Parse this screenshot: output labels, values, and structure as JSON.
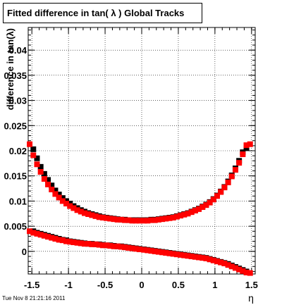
{
  "title": "Fitted difference in tan( λ )  Global Tracks",
  "timestamp": "Tue Nov  8 21:21:16 2011",
  "chart_data": {
    "type": "scatter",
    "title": "Fitted difference in tan( λ )  Global Tracks",
    "xlabel": "η",
    "ylabel": "difference in tan(λ)",
    "xlim": [
      -1.55,
      1.55
    ],
    "ylim": [
      -0.0045,
      0.0445
    ],
    "grid": true,
    "x_ticks": [
      -1.5,
      -1,
      -0.5,
      0,
      0.5,
      1,
      1.5
    ],
    "x_tick_labels": [
      "-1.5",
      "-1",
      "-0.5",
      "0",
      "0.5",
      "1",
      "1.5"
    ],
    "y_ticks": [
      0,
      0.005,
      0.01,
      0.015,
      0.02,
      0.025,
      0.03,
      0.035,
      0.04
    ],
    "y_tick_labels": [
      "0",
      "0.005",
      "0.01",
      "0.015",
      "0.02",
      "0.025",
      "0.03",
      "0.035",
      "0.04"
    ],
    "series": [
      {
        "color": "#000000",
        "points": [
          [
            -1.48,
            0.0203
          ],
          [
            -1.43,
            0.0185
          ],
          [
            -1.38,
            0.0168
          ],
          [
            -1.33,
            0.0154
          ],
          [
            -1.28,
            0.0142
          ],
          [
            -1.23,
            0.0131
          ],
          [
            -1.18,
            0.0121
          ],
          [
            -1.13,
            0.0113
          ],
          [
            -1.08,
            0.0106
          ],
          [
            -1.03,
            0.01
          ],
          [
            -0.98,
            0.0095
          ],
          [
            -0.93,
            0.009
          ],
          [
            -0.88,
            0.0086
          ],
          [
            -0.83,
            0.0082
          ],
          [
            -0.78,
            0.0079
          ],
          [
            -0.73,
            0.0076
          ],
          [
            -0.68,
            0.0074
          ],
          [
            -0.63,
            0.0072
          ],
          [
            -0.58,
            0.007
          ],
          [
            -0.53,
            0.0068
          ],
          [
            -0.48,
            0.0067
          ],
          [
            -0.43,
            0.0066
          ],
          [
            -0.38,
            0.0065
          ],
          [
            -0.33,
            0.0064
          ],
          [
            -0.28,
            0.0063
          ],
          [
            -0.23,
            0.0063
          ],
          [
            -0.18,
            0.0062
          ],
          [
            -0.13,
            0.0062
          ],
          [
            -0.08,
            0.0062
          ],
          [
            -0.03,
            0.0062
          ],
          [
            0.03,
            0.0062
          ],
          [
            0.08,
            0.0062
          ],
          [
            0.13,
            0.0063
          ],
          [
            0.18,
            0.0063
          ],
          [
            0.23,
            0.0064
          ],
          [
            0.28,
            0.0065
          ],
          [
            0.33,
            0.0066
          ],
          [
            0.38,
            0.0067
          ],
          [
            0.43,
            0.0068
          ],
          [
            0.48,
            0.007
          ],
          [
            0.53,
            0.0072
          ],
          [
            0.58,
            0.0074
          ],
          [
            0.63,
            0.0076
          ],
          [
            0.68,
            0.0079
          ],
          [
            0.73,
            0.0082
          ],
          [
            0.78,
            0.0085
          ],
          [
            0.83,
            0.0089
          ],
          [
            0.88,
            0.0093
          ],
          [
            0.93,
            0.0098
          ],
          [
            0.98,
            0.0104
          ],
          [
            1.03,
            0.0111
          ],
          [
            1.08,
            0.0119
          ],
          [
            1.13,
            0.0128
          ],
          [
            1.18,
            0.0139
          ],
          [
            1.23,
            0.0151
          ],
          [
            1.28,
            0.0165
          ],
          [
            1.33,
            0.018
          ],
          [
            1.38,
            0.0197
          ],
          [
            1.43,
            0.0205
          ],
          [
            -1.48,
            0.004
          ],
          [
            -1.43,
            0.0037
          ],
          [
            -1.38,
            0.0035
          ],
          [
            -1.33,
            0.0033
          ],
          [
            -1.28,
            0.0031
          ],
          [
            -1.23,
            0.0029
          ],
          [
            -1.18,
            0.0027
          ],
          [
            -1.13,
            0.0025
          ],
          [
            -1.08,
            0.0023
          ],
          [
            -1.03,
            0.0022
          ],
          [
            -0.98,
            0.002
          ],
          [
            -0.93,
            0.0019
          ],
          [
            -0.88,
            0.0018
          ],
          [
            -0.83,
            0.0017
          ],
          [
            -0.78,
            0.0016
          ],
          [
            -0.73,
            0.0015
          ],
          [
            -0.68,
            0.0015
          ],
          [
            -0.63,
            0.0014
          ],
          [
            -0.58,
            0.0014
          ],
          [
            -0.53,
            0.0013
          ],
          [
            -0.48,
            0.0012
          ],
          [
            -0.43,
            0.0012
          ],
          [
            -0.38,
            0.0011
          ],
          [
            -0.33,
            0.001
          ],
          [
            -0.28,
            0.001
          ],
          [
            -0.23,
            0.0009
          ],
          [
            -0.18,
            0.0008
          ],
          [
            -0.13,
            0.0007
          ],
          [
            -0.08,
            0.0006
          ],
          [
            -0.03,
            0.0005
          ],
          [
            0.03,
            0.0004
          ],
          [
            0.08,
            0.0003
          ],
          [
            0.13,
            0.0002
          ],
          [
            0.18,
            0.0001
          ],
          [
            0.23,
            0.0
          ],
          [
            0.28,
            -0.0001
          ],
          [
            0.33,
            -0.0002
          ],
          [
            0.38,
            -0.0003
          ],
          [
            0.43,
            -0.0004
          ],
          [
            0.48,
            -0.0005
          ],
          [
            0.53,
            -0.0006
          ],
          [
            0.58,
            -0.0007
          ],
          [
            0.63,
            -0.0008
          ],
          [
            0.68,
            -0.0009
          ],
          [
            0.73,
            -0.001
          ],
          [
            0.78,
            -0.0011
          ],
          [
            0.83,
            -0.0012
          ],
          [
            0.88,
            -0.0013
          ],
          [
            0.93,
            -0.0015
          ],
          [
            0.98,
            -0.0017
          ],
          [
            1.03,
            -0.0019
          ],
          [
            1.08,
            -0.0021
          ],
          [
            1.13,
            -0.0023
          ],
          [
            1.18,
            -0.0025
          ],
          [
            1.23,
            -0.0028
          ],
          [
            1.28,
            -0.0031
          ],
          [
            1.33,
            -0.0034
          ],
          [
            1.38,
            -0.0037
          ],
          [
            1.43,
            -0.004
          ]
        ]
      },
      {
        "color": "#ff0000",
        "points": [
          [
            -1.53,
            0.0213
          ],
          [
            -1.48,
            0.0191
          ],
          [
            -1.43,
            0.0173
          ],
          [
            -1.38,
            0.0158
          ],
          [
            -1.33,
            0.0144
          ],
          [
            -1.28,
            0.0133
          ],
          [
            -1.23,
            0.0123
          ],
          [
            -1.18,
            0.0114
          ],
          [
            -1.13,
            0.0107
          ],
          [
            -1.08,
            0.01
          ],
          [
            -1.03,
            0.0095
          ],
          [
            -0.98,
            0.009
          ],
          [
            -0.93,
            0.0086
          ],
          [
            -0.88,
            0.0082
          ],
          [
            -0.83,
            0.0079
          ],
          [
            -0.78,
            0.0076
          ],
          [
            -0.73,
            0.0074
          ],
          [
            -0.68,
            0.0072
          ],
          [
            -0.63,
            0.007
          ],
          [
            -0.58,
            0.0068
          ],
          [
            -0.53,
            0.0067
          ],
          [
            -0.48,
            0.0066
          ],
          [
            -0.43,
            0.0065
          ],
          [
            -0.38,
            0.0064
          ],
          [
            -0.33,
            0.0063
          ],
          [
            -0.28,
            0.0063
          ],
          [
            -0.23,
            0.0062
          ],
          [
            -0.18,
            0.0062
          ],
          [
            -0.13,
            0.0061
          ],
          [
            -0.08,
            0.0061
          ],
          [
            -0.03,
            0.0061
          ],
          [
            0.03,
            0.0061
          ],
          [
            0.08,
            0.0061
          ],
          [
            0.13,
            0.0062
          ],
          [
            0.18,
            0.0062
          ],
          [
            0.23,
            0.0063
          ],
          [
            0.28,
            0.0064
          ],
          [
            0.33,
            0.0065
          ],
          [
            0.38,
            0.0066
          ],
          [
            0.43,
            0.0067
          ],
          [
            0.48,
            0.0069
          ],
          [
            0.53,
            0.0071
          ],
          [
            0.58,
            0.0073
          ],
          [
            0.63,
            0.0075
          ],
          [
            0.68,
            0.0078
          ],
          [
            0.73,
            0.0081
          ],
          [
            0.78,
            0.0084
          ],
          [
            0.83,
            0.0088
          ],
          [
            0.88,
            0.0092
          ],
          [
            0.93,
            0.0097
          ],
          [
            0.98,
            0.0103
          ],
          [
            1.03,
            0.011
          ],
          [
            1.08,
            0.0118
          ],
          [
            1.13,
            0.0127
          ],
          [
            1.18,
            0.0137
          ],
          [
            1.23,
            0.0149
          ],
          [
            1.28,
            0.0162
          ],
          [
            1.33,
            0.0176
          ],
          [
            1.38,
            0.0193
          ],
          [
            1.43,
            0.0211
          ],
          [
            1.48,
            0.0213
          ],
          [
            -1.53,
            0.004
          ],
          [
            -1.48,
            0.0037
          ],
          [
            -1.43,
            0.0035
          ],
          [
            -1.38,
            0.0033
          ],
          [
            -1.33,
            0.0031
          ],
          [
            -1.28,
            0.0029
          ],
          [
            -1.23,
            0.0027
          ],
          [
            -1.18,
            0.0025
          ],
          [
            -1.13,
            0.0023
          ],
          [
            -1.08,
            0.0022
          ],
          [
            -1.03,
            0.002
          ],
          [
            -0.98,
            0.0019
          ],
          [
            -0.93,
            0.0018
          ],
          [
            -0.88,
            0.0017
          ],
          [
            -0.83,
            0.0016
          ],
          [
            -0.78,
            0.0015
          ],
          [
            -0.73,
            0.0015
          ],
          [
            -0.68,
            0.0014
          ],
          [
            -0.63,
            0.0014
          ],
          [
            -0.58,
            0.0013
          ],
          [
            -0.53,
            0.0012
          ],
          [
            -0.48,
            0.0012
          ],
          [
            -0.43,
            0.0011
          ],
          [
            -0.38,
            0.001
          ],
          [
            -0.33,
            0.001
          ],
          [
            -0.28,
            0.0009
          ],
          [
            -0.23,
            0.0008
          ],
          [
            -0.18,
            0.0007
          ],
          [
            -0.13,
            0.0006
          ],
          [
            -0.08,
            0.0005
          ],
          [
            -0.03,
            0.0004
          ],
          [
            0.03,
            0.0003
          ],
          [
            0.08,
            0.0002
          ],
          [
            0.13,
            0.0001
          ],
          [
            0.18,
            0.0
          ],
          [
            0.23,
            -0.0001
          ],
          [
            0.28,
            -0.0002
          ],
          [
            0.33,
            -0.0003
          ],
          [
            0.38,
            -0.0004
          ],
          [
            0.43,
            -0.0005
          ],
          [
            0.48,
            -0.0006
          ],
          [
            0.53,
            -0.0007
          ],
          [
            0.58,
            -0.0008
          ],
          [
            0.63,
            -0.0009
          ],
          [
            0.68,
            -0.001
          ],
          [
            0.73,
            -0.0011
          ],
          [
            0.78,
            -0.0012
          ],
          [
            0.83,
            -0.0013
          ],
          [
            0.88,
            -0.0014
          ],
          [
            0.93,
            -0.0016
          ],
          [
            0.98,
            -0.0018
          ],
          [
            1.03,
            -0.002
          ],
          [
            1.08,
            -0.0022
          ],
          [
            1.13,
            -0.0024
          ],
          [
            1.18,
            -0.0027
          ],
          [
            1.23,
            -0.003
          ],
          [
            1.28,
            -0.0033
          ],
          [
            1.33,
            -0.0036
          ],
          [
            1.38,
            -0.0039
          ],
          [
            1.43,
            -0.0042
          ],
          [
            1.48,
            -0.0043
          ]
        ]
      }
    ]
  }
}
